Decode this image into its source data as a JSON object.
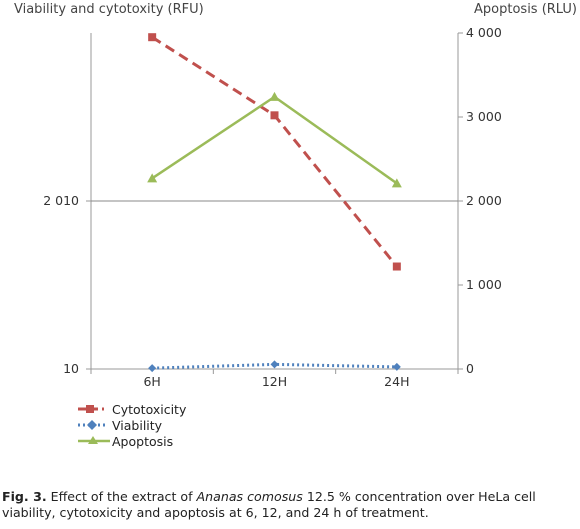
{
  "chart_data": {
    "type": "line",
    "categories": [
      "6H",
      "12H",
      "24H"
    ],
    "left_axis": {
      "title": "Viability and cytotoxity (RFU)",
      "tick_labels": [
        "10",
        "2 010"
      ]
    },
    "right_axis": {
      "title": "Apoptosis (RLU)",
      "range": [
        0,
        4000
      ],
      "tick_labels": [
        "0",
        "1 000",
        "2 000",
        "3 000",
        "4 000"
      ]
    },
    "series": [
      {
        "name": "Cytotoxicity",
        "axis": "left",
        "values_right_scale_equiv": [
          3950,
          3020,
          1220
        ],
        "color": "#c0504d",
        "style": "dashed",
        "marker": "square"
      },
      {
        "name": "Viability",
        "axis": "left",
        "values_right_scale_equiv": [
          10,
          55,
          25
        ],
        "color": "#4f81bd",
        "style": "dotted",
        "marker": "diamond"
      },
      {
        "name": "Apoptosis",
        "axis": "right",
        "values": [
          2270,
          3240,
          2210
        ],
        "color": "#9bbb59",
        "style": "solid",
        "marker": "triangle"
      }
    ],
    "gridline_at_right_value": 2000
  },
  "caption": {
    "label": "Fig. 3.",
    "text_before_italic": " Effect of the extract of ",
    "italic": "Ananas comosus",
    "text_after_italic": " 12.5 % concentration over HeLa cell viability, cytotoxicity and apoptosis at 6, 12, and 24 h of treatment."
  }
}
